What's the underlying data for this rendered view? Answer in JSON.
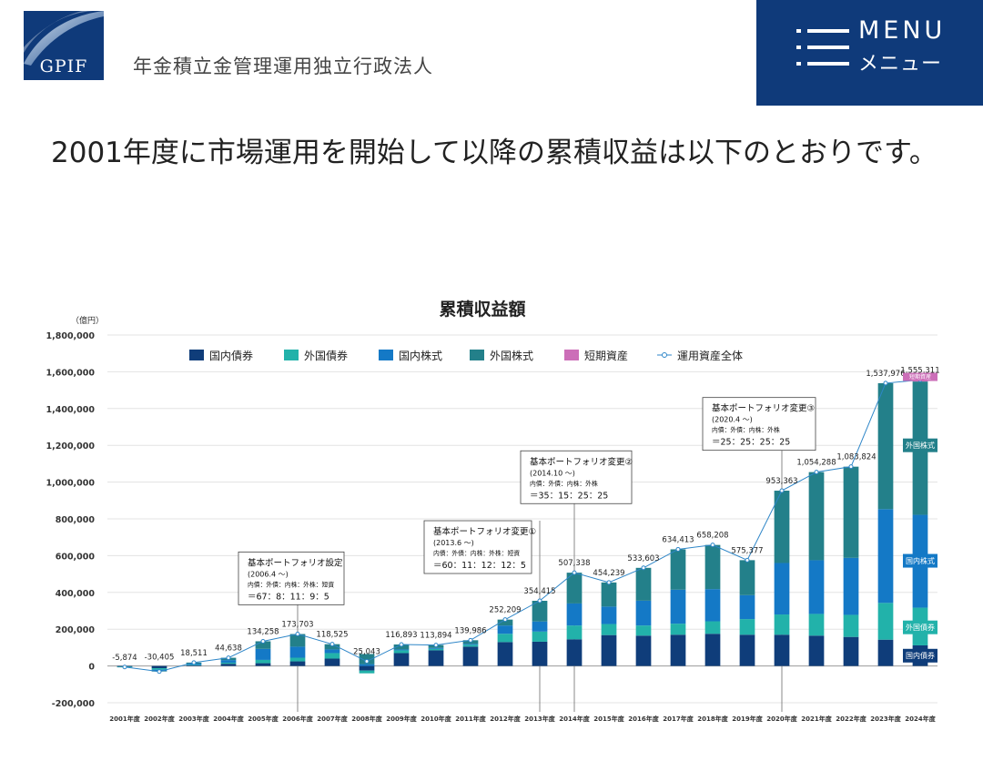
{
  "header": {
    "logo_text": "GPIF",
    "org_name": "年金積立金管理運用独立行政法人",
    "menu_en": "MENU",
    "menu_ja": "メニュー"
  },
  "intro_text": "2001年度に市場運用を開始して以降の累積収益は以下のとおりです。",
  "colors": {
    "domestic_bonds": "#0f3d7a",
    "foreign_bonds": "#22b2aa",
    "domestic_stocks": "#1479c6",
    "foreign_stocks": "#23808a",
    "short_term": "#cc6eb8",
    "total_line": "#2e86c8",
    "brand": "#0f3a7a"
  },
  "chart_data": {
    "type": "bar",
    "title": "累積収益額",
    "yunit": "（億円）",
    "ylim": [
      -200000,
      1800000
    ],
    "yticks": [
      -200000,
      0,
      200000,
      400000,
      600000,
      800000,
      1000000,
      1200000,
      1400000,
      1600000,
      1800000
    ],
    "ytick_labels": [
      "-200,000",
      "0",
      "200,000",
      "400,000",
      "600,000",
      "800,000",
      "1,000,000",
      "1,200,000",
      "1,400,000",
      "1,600,000",
      "1,800,000"
    ],
    "grid": true,
    "legend_position": "top",
    "categories": [
      "2001年度",
      "2002年度",
      "2003年度",
      "2004年度",
      "2005年度",
      "2006年度",
      "2007年度",
      "2008年度",
      "2009年度",
      "2010年度",
      "2011年度",
      "2012年度",
      "2013年度",
      "2014年度",
      "2015年度",
      "2016年度",
      "2017年度",
      "2018年度",
      "2019年度",
      "2020年度",
      "2021年度",
      "2022年度",
      "2023年度",
      "2024年度"
    ],
    "series": [
      {
        "name": "国内債券",
        "values": [
          -2000,
          -12000,
          3000,
          12000,
          15000,
          25000,
          40000,
          -25000,
          70000,
          85000,
          105000,
          130000,
          132000,
          145000,
          168000,
          165000,
          170000,
          175000,
          170000,
          170000,
          165000,
          158000,
          143000,
          112000
        ]
      },
      {
        "name": "外国債券",
        "values": [
          -1500,
          -8000,
          3000,
          6000,
          18000,
          20000,
          30000,
          -15000,
          15000,
          8000,
          10000,
          45000,
          55000,
          75000,
          60000,
          55000,
          60000,
          68000,
          85000,
          110000,
          118000,
          120000,
          200000,
          205000
        ]
      },
      {
        "name": "国内株式",
        "values": [
          -1500,
          -8000,
          7000,
          14000,
          60000,
          60000,
          20000,
          10000,
          5000,
          5000,
          5000,
          45000,
          55000,
          120000,
          95000,
          135000,
          185000,
          175000,
          130000,
          280000,
          292000,
          310000,
          510000,
          505000
        ]
      },
      {
        "name": "外国株式",
        "values": [
          -874,
          -2405,
          5511,
          12638,
          41258,
          68703,
          28525,
          55043,
          26893,
          15894,
          19986,
          32209,
          112415,
          167338,
          131239,
          178603,
          219413,
          240208,
          190377,
          393363,
          479288,
          495824,
          684976,
          725000
        ]
      },
      {
        "name": "短期資産",
        "values": [
          0,
          0,
          0,
          0,
          0,
          0,
          0,
          0,
          0,
          0,
          0,
          0,
          0,
          0,
          0,
          0,
          0,
          0,
          0,
          0,
          0,
          0,
          0,
          8311
        ]
      }
    ],
    "total_series": {
      "name": "運用資産全体",
      "values": [
        -5874,
        -30405,
        18511,
        44638,
        134258,
        173703,
        118525,
        25043,
        116893,
        113894,
        139986,
        252209,
        354415,
        507338,
        454239,
        533603,
        634413,
        658208,
        575377,
        953363,
        1054288,
        1083824,
        1537976,
        1555311
      ],
      "labels": [
        "-5,874",
        "-30,405",
        "18,511",
        "44,638",
        "134,258",
        "173,703",
        "118,525",
        "25,043",
        "116,893",
        "113,894",
        "139,986",
        "252,209",
        "354,415",
        "507,338",
        "454,239",
        "533,603",
        "634,413",
        "658,208",
        "575,377",
        "953,363",
        "1,054,288",
        "1,083,824",
        "1,537,976",
        "1,555,311"
      ]
    },
    "annotations": [
      {
        "category_index": 5,
        "title": "基本ポートフォリオ設定",
        "period": "(2006.4 ～)",
        "legend": "内債：外債：内株：外株：短資",
        "ratio": "＝67：8：11：9：5",
        "box_value": 620000
      },
      {
        "category_index": 12,
        "title": "基本ポートフォリオ変更①",
        "period": "(2013.6 ～)",
        "legend": "内債：外債：内株：外株：短資",
        "ratio": "＝60：11：12：12：5",
        "box_value": 790000
      },
      {
        "category_index": 13,
        "title": "基本ポートフォリオ変更②",
        "period": "(2014.10 ～)",
        "legend": "内債：外債：内株：外株",
        "ratio": "＝35：15：25：25",
        "box_value": 1170000
      },
      {
        "category_index": 19,
        "title": "基本ポートフォリオ変更③",
        "period": "(2020.4 ～)",
        "legend": "内債：外債：内株：外株",
        "ratio": "＝25：25：25：25",
        "box_value": 1460000
      }
    ],
    "bar_labels_2024": {
      "short_term": "短期資産",
      "foreign_stocks": "外国株式",
      "domestic_stocks": "国内株式",
      "foreign_bonds": "外国債券",
      "domestic_bonds": "国内債券"
    }
  }
}
